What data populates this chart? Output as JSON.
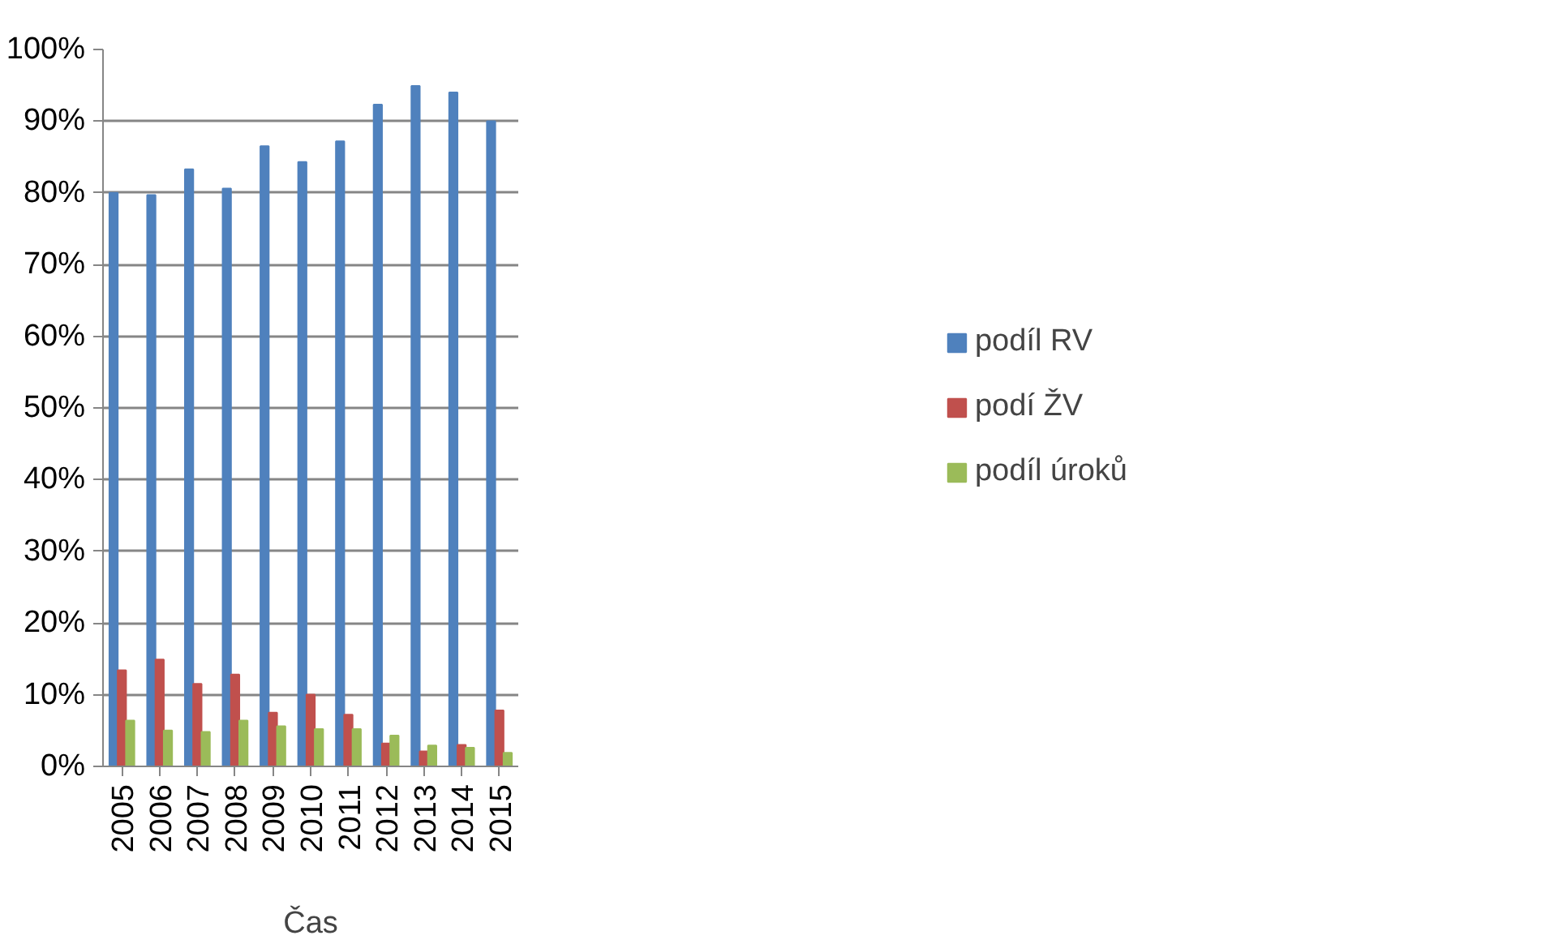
{
  "chart_data": {
    "type": "bar",
    "xlabel": "Čas",
    "categories": [
      "2005",
      "2006",
      "2007",
      "2008",
      "2009",
      "2010",
      "2011",
      "2012",
      "2013",
      "2014",
      "2015"
    ],
    "series": [
      {
        "name": "podíl RV",
        "color": "#4f81bd",
        "values": [
          80,
          79.7,
          83.3,
          80.6,
          86.5,
          84.3,
          87.2,
          92.3,
          94.9,
          94.0,
          90.0
        ]
      },
      {
        "name": "podí ŽV",
        "color": "#c0504d",
        "values": [
          13.4,
          14.9,
          11.5,
          12.8,
          7.5,
          10.0,
          7.2,
          3.2,
          2.1,
          3.0,
          7.8
        ]
      },
      {
        "name": "podíl úroků",
        "color": "#9bbb59",
        "values": [
          6.4,
          5.0,
          4.8,
          6.4,
          5.6,
          5.2,
          5.2,
          4.3,
          2.9,
          2.6,
          1.9
        ]
      }
    ],
    "ylim": [
      0,
      100
    ],
    "yticks": [
      {
        "value": 0,
        "label": "0%"
      },
      {
        "value": 10,
        "label": "10%"
      },
      {
        "value": 20,
        "label": "20%"
      },
      {
        "value": 30,
        "label": "30%"
      },
      {
        "value": 40,
        "label": "40%"
      },
      {
        "value": 50,
        "label": "50%"
      },
      {
        "value": 60,
        "label": "60%"
      },
      {
        "value": 70,
        "label": "70%"
      },
      {
        "value": 80,
        "label": "80%"
      },
      {
        "value": 90,
        "label": "90%"
      },
      {
        "value": 100,
        "label": "100%"
      }
    ],
    "grid": "y",
    "legend": "right"
  }
}
